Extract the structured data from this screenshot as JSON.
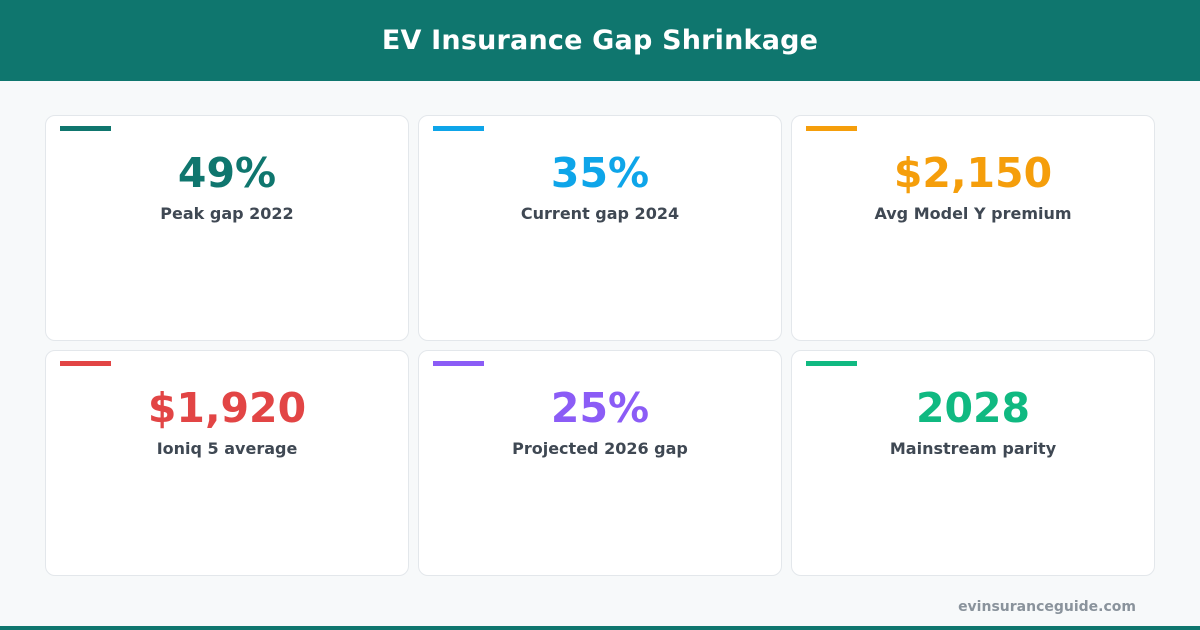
{
  "header": {
    "title": "EV Insurance Gap Shrinkage"
  },
  "colors": {
    "brand": "#0f766e",
    "teal": "#0f766e",
    "blue": "#0ea5e9",
    "amber": "#f59e0b",
    "red": "#e24545",
    "purple": "#8b5cf6",
    "green": "#10b981"
  },
  "stats": [
    {
      "value": "49%",
      "label": "Peak gap 2022",
      "color": "#0f766e"
    },
    {
      "value": "35%",
      "label": "Current gap 2024",
      "color": "#0ea5e9"
    },
    {
      "value": "$2,150",
      "label": "Avg Model Y premium",
      "color": "#f59e0b"
    },
    {
      "value": "$1,920",
      "label": "Ioniq 5 average",
      "color": "#e24545"
    },
    {
      "value": "25%",
      "label": "Projected 2026 gap",
      "color": "#8b5cf6"
    },
    {
      "value": "2028",
      "label": "Mainstream parity",
      "color": "#10b981"
    }
  ],
  "footer": {
    "url": "evinsuranceguide.com"
  }
}
